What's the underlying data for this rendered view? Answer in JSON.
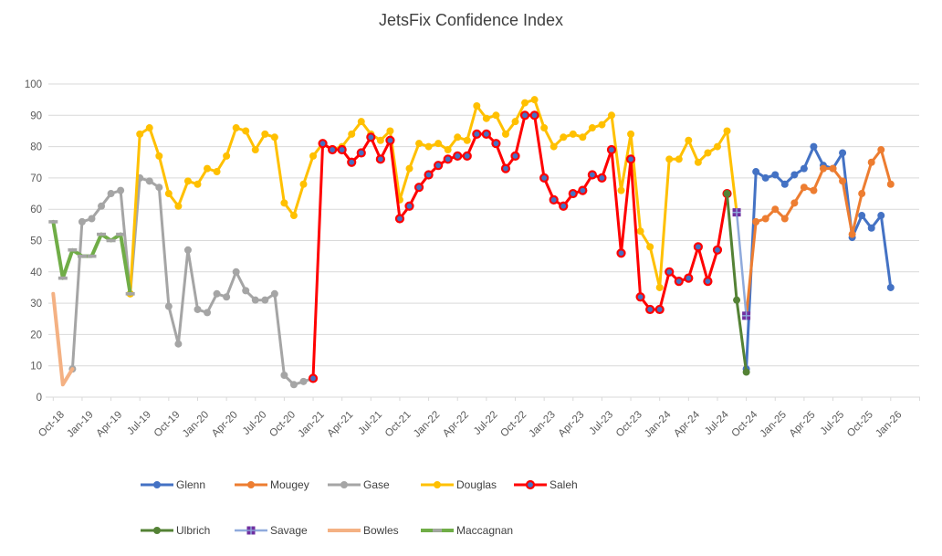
{
  "title": "JetsFix Confidence Index",
  "colors": {
    "background": "#FFFFFF",
    "grid": "#D9D9D9",
    "axis_line": "#D9D9D9",
    "tick_text": "#595959",
    "title_text": "#404040",
    "legend_text": "#404040"
  },
  "chart_data": {
    "type": "line",
    "title": "JetsFix Confidence Index",
    "xlabel": "",
    "ylabel": "",
    "grid": true,
    "legend_position": "bottom",
    "x_axis": {
      "month0_label": "Oct-18",
      "months_per_tick": 3,
      "total_months": 88,
      "tick_labels": [
        "Oct-18",
        "Jan-19",
        "Apr-19",
        "Jul-19",
        "Oct-19",
        "Jan-20",
        "Apr-20",
        "Jul-20",
        "Oct-20",
        "Jan-21",
        "Apr-21",
        "Jul-21",
        "Oct-21",
        "Jan-22",
        "Apr-22",
        "Jul-22",
        "Oct-22",
        "Jan-23",
        "Apr-23",
        "Jul-23",
        "Oct-23",
        "Jan-24",
        "Apr-24",
        "Jul-24",
        "Oct-24",
        "Jan-25",
        "Apr-25",
        "Jul-25",
        "Oct-25",
        "Jan-26"
      ]
    },
    "y_axis": {
      "min": 0,
      "max": 100,
      "tick_step": 10,
      "tick_labels": [
        "0",
        "10",
        "20",
        "30",
        "40",
        "50",
        "60",
        "70",
        "80",
        "90",
        "100"
      ]
    },
    "series": [
      {
        "name": "Glenn",
        "line_color": "#4472C4",
        "line_width": 3,
        "marker": "circle",
        "marker_fill": "#4472C4",
        "marker_stroke": "#4472C4",
        "points": [
          [
            72,
            9
          ],
          [
            73,
            72
          ],
          [
            74,
            70
          ],
          [
            75,
            71
          ],
          [
            76,
            68
          ],
          [
            77,
            71
          ],
          [
            78,
            73
          ],
          [
            79,
            80
          ],
          [
            80,
            74
          ],
          [
            81,
            73
          ],
          [
            82,
            78
          ],
          [
            83,
            51
          ],
          [
            84,
            58
          ],
          [
            85,
            54
          ],
          [
            86,
            58
          ],
          [
            87,
            35
          ]
        ]
      },
      {
        "name": "Mougey",
        "line_color": "#ED7D31",
        "line_width": 3,
        "marker": "circle",
        "marker_fill": "#ED7D31",
        "marker_stroke": "#ED7D31",
        "points": [
          [
            72,
            26
          ],
          [
            73,
            56
          ],
          [
            74,
            57
          ],
          [
            75,
            60
          ],
          [
            76,
            57
          ],
          [
            77,
            62
          ],
          [
            78,
            67
          ],
          [
            79,
            66
          ],
          [
            80,
            73
          ],
          [
            81,
            73
          ],
          [
            82,
            69
          ],
          [
            83,
            52
          ],
          [
            84,
            65
          ],
          [
            85,
            75
          ],
          [
            86,
            79
          ],
          [
            87,
            68
          ]
        ]
      },
      {
        "name": "Gase",
        "line_color": "#A5A5A5",
        "line_width": 3,
        "marker": "circle",
        "marker_fill": "#A5A5A5",
        "marker_stroke": "#A5A5A5",
        "points": [
          [
            2,
            9
          ],
          [
            3,
            56
          ],
          [
            4,
            57
          ],
          [
            5,
            61
          ],
          [
            6,
            65
          ],
          [
            7,
            66
          ],
          [
            8,
            33
          ],
          [
            9,
            70
          ],
          [
            10,
            69
          ],
          [
            11,
            67
          ],
          [
            12,
            29
          ],
          [
            13,
            17
          ],
          [
            14,
            47
          ],
          [
            15,
            28
          ],
          [
            16,
            27
          ],
          [
            17,
            33
          ],
          [
            18,
            32
          ],
          [
            19,
            40
          ],
          [
            20,
            34
          ],
          [
            21,
            31
          ],
          [
            22,
            31
          ],
          [
            23,
            33
          ],
          [
            24,
            7
          ],
          [
            25,
            4
          ],
          [
            26,
            5
          ],
          [
            27,
            6
          ]
        ]
      },
      {
        "name": "Douglas",
        "line_color": "#FFC000",
        "line_width": 3,
        "marker": "circle",
        "marker_fill": "#FFC000",
        "marker_stroke": "#FFC000",
        "points": [
          [
            8,
            33
          ],
          [
            9,
            84
          ],
          [
            10,
            86
          ],
          [
            11,
            77
          ],
          [
            12,
            65
          ],
          [
            13,
            61
          ],
          [
            14,
            69
          ],
          [
            15,
            68
          ],
          [
            16,
            73
          ],
          [
            17,
            72
          ],
          [
            18,
            77
          ],
          [
            19,
            86
          ],
          [
            20,
            85
          ],
          [
            21,
            79
          ],
          [
            22,
            84
          ],
          [
            23,
            83
          ],
          [
            24,
            62
          ],
          [
            25,
            58
          ],
          [
            26,
            68
          ],
          [
            27,
            77
          ],
          [
            28,
            81
          ],
          [
            29,
            79
          ],
          [
            30,
            80
          ],
          [
            31,
            84
          ],
          [
            32,
            88
          ],
          [
            33,
            84
          ],
          [
            34,
            82
          ],
          [
            35,
            85
          ],
          [
            36,
            63
          ],
          [
            37,
            73
          ],
          [
            38,
            81
          ],
          [
            39,
            80
          ],
          [
            40,
            81
          ],
          [
            41,
            79
          ],
          [
            42,
            83
          ],
          [
            43,
            82
          ],
          [
            44,
            93
          ],
          [
            45,
            89
          ],
          [
            46,
            90
          ],
          [
            47,
            84
          ],
          [
            48,
            88
          ],
          [
            49,
            94
          ],
          [
            50,
            95
          ],
          [
            51,
            86
          ],
          [
            52,
            80
          ],
          [
            53,
            83
          ],
          [
            54,
            84
          ],
          [
            55,
            83
          ],
          [
            56,
            86
          ],
          [
            57,
            87
          ],
          [
            58,
            90
          ],
          [
            59,
            66
          ],
          [
            60,
            84
          ],
          [
            61,
            53
          ],
          [
            62,
            48
          ],
          [
            63,
            35
          ],
          [
            64,
            76
          ],
          [
            65,
            76
          ],
          [
            66,
            82
          ],
          [
            67,
            75
          ],
          [
            68,
            78
          ],
          [
            69,
            80
          ],
          [
            70,
            85
          ],
          [
            71,
            59
          ]
        ]
      },
      {
        "name": "Saleh",
        "line_color": "#FF0000",
        "line_width": 3,
        "marker": "circle",
        "marker_fill": "#4472C4",
        "marker_stroke": "#FF0000",
        "points": [
          [
            27,
            6
          ],
          [
            28,
            81
          ],
          [
            29,
            79
          ],
          [
            30,
            79
          ],
          [
            31,
            75
          ],
          [
            32,
            78
          ],
          [
            33,
            83
          ],
          [
            34,
            76
          ],
          [
            35,
            82
          ],
          [
            36,
            57
          ],
          [
            37,
            61
          ],
          [
            38,
            67
          ],
          [
            39,
            71
          ],
          [
            40,
            74
          ],
          [
            41,
            76
          ],
          [
            42,
            77
          ],
          [
            43,
            77
          ],
          [
            44,
            84
          ],
          [
            45,
            84
          ],
          [
            46,
            81
          ],
          [
            47,
            73
          ],
          [
            48,
            77
          ],
          [
            49,
            90
          ],
          [
            50,
            90
          ],
          [
            51,
            70
          ],
          [
            52,
            63
          ],
          [
            53,
            61
          ],
          [
            54,
            65
          ],
          [
            55,
            66
          ],
          [
            56,
            71
          ],
          [
            57,
            70
          ],
          [
            58,
            79
          ],
          [
            59,
            46
          ],
          [
            60,
            76
          ],
          [
            61,
            32
          ],
          [
            62,
            28
          ],
          [
            63,
            28
          ],
          [
            64,
            40
          ],
          [
            65,
            37
          ],
          [
            66,
            38
          ],
          [
            67,
            48
          ],
          [
            68,
            37
          ],
          [
            69,
            47
          ],
          [
            70,
            65
          ]
        ]
      },
      {
        "name": "Ulbrich",
        "line_color": "#548235",
        "line_width": 3,
        "marker": "circle",
        "marker_fill": "#548235",
        "marker_stroke": "#548235",
        "points": [
          [
            70,
            65
          ],
          [
            71,
            31
          ],
          [
            72,
            8
          ]
        ]
      },
      {
        "name": "Savage",
        "line_color": "#8FAADC",
        "line_width": 2.5,
        "marker": "square",
        "marker_fill": "#7030A0",
        "marker_stroke": "#7030A0",
        "points": [
          [
            71,
            59
          ],
          [
            72,
            26
          ]
        ]
      },
      {
        "name": "Bowles",
        "line_color": "#F4B183",
        "line_width": 4,
        "marker": "none",
        "marker_fill": "",
        "marker_stroke": "",
        "points": [
          [
            0,
            33
          ],
          [
            1,
            4
          ],
          [
            2,
            9
          ]
        ]
      },
      {
        "name": "Maccagnan",
        "line_color": "#70AD47",
        "line_width": 4,
        "marker": "dash",
        "marker_fill": "#A5A5A5",
        "marker_stroke": "#A5A5A5",
        "points": [
          [
            0,
            56
          ],
          [
            1,
            38
          ],
          [
            2,
            47
          ],
          [
            3,
            45
          ],
          [
            4,
            45
          ],
          [
            5,
            52
          ],
          [
            6,
            50
          ],
          [
            7,
            52
          ],
          [
            8,
            33
          ]
        ]
      }
    ]
  }
}
